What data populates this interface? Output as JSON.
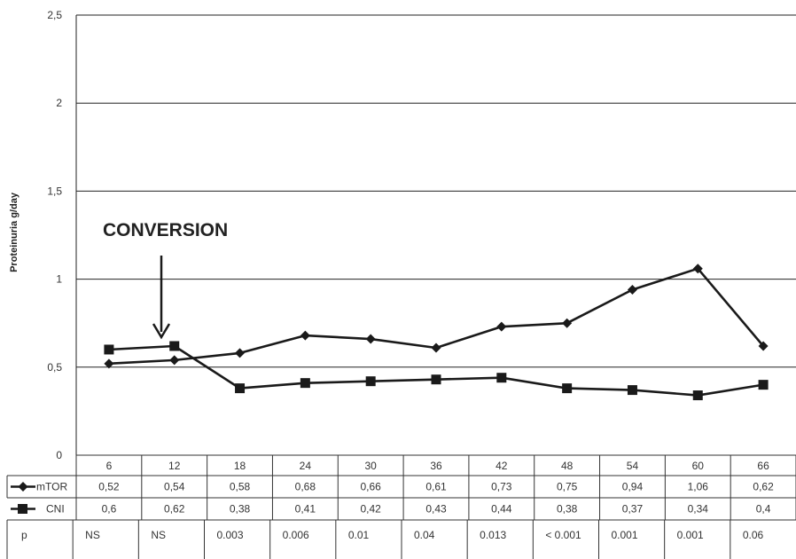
{
  "chart_data": {
    "type": "line",
    "ylabel": "Proteinuria g/day",
    "ylim": [
      0,
      2.5
    ],
    "yticks": [
      "0",
      "0,5",
      "1",
      "1,5",
      "2",
      "2,5"
    ],
    "ytick_values": [
      0,
      0.5,
      1,
      1.5,
      2,
      2.5
    ],
    "categories": [
      "6",
      "12",
      "18",
      "24",
      "30",
      "36",
      "42",
      "48",
      "54",
      "60",
      "66"
    ],
    "series": [
      {
        "name": "mTOR",
        "marker": "diamond",
        "values": [
          0.52,
          0.54,
          0.58,
          0.68,
          0.66,
          0.61,
          0.73,
          0.75,
          0.94,
          1.06,
          0.62
        ],
        "labels": [
          "0,52",
          "0,54",
          "0,58",
          "0,68",
          "0,66",
          "0,61",
          "0,73",
          "0,75",
          "0,94",
          "1,06",
          "0,62"
        ]
      },
      {
        "name": "CNI",
        "marker": "square",
        "values": [
          0.6,
          0.62,
          0.38,
          0.41,
          0.42,
          0.43,
          0.44,
          0.38,
          0.37,
          0.34,
          0.4
        ],
        "labels": [
          "0,6",
          "0,62",
          "0,38",
          "0,41",
          "0,42",
          "0,43",
          "0,44",
          "0,38",
          "0,37",
          "0,34",
          "0,4"
        ]
      }
    ],
    "p_row": {
      "label": "p",
      "values": [
        "NS",
        "NS",
        "0.003",
        "0.006",
        "0.01",
        "0.04",
        "0.013",
        "< 0.001",
        "0.001",
        "0.001",
        "0.06"
      ]
    },
    "annotation": {
      "text": "CONVERSION",
      "at_category": "12"
    },
    "grid": "horizontal",
    "legend": "data-table-rows",
    "line_color": "#1a1a1a"
  }
}
